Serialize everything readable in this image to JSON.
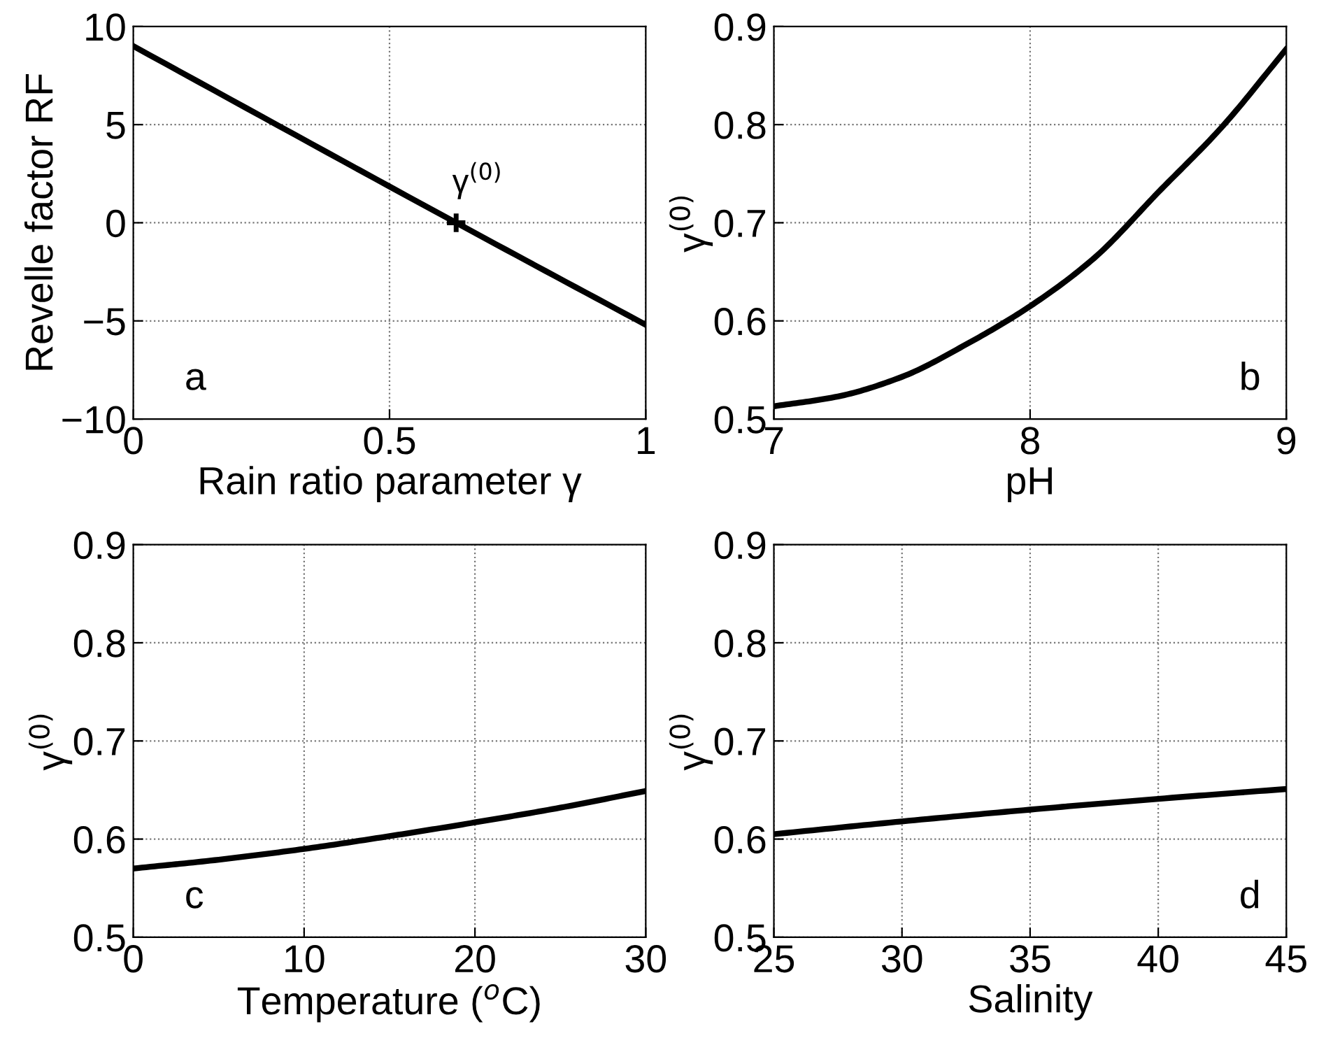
{
  "chart_data": [
    {
      "type": "line",
      "xlabel": "Rain ratio parameter γ",
      "ylabel": "Revelle factor RF",
      "xlim": [
        0,
        1
      ],
      "ylim": [
        -10,
        10
      ],
      "xticks": [
        0,
        0.5,
        1
      ],
      "yticks": [
        -10,
        -5,
        0,
        5,
        10
      ],
      "grid": true,
      "series": [
        {
          "color": "#000000",
          "x": [
            0,
            0.63,
            1
          ],
          "values": [
            9,
            0,
            -5.2
          ]
        },
        {
          "type": "scatter",
          "marker": "cross",
          "color": "#000000",
          "x": [
            0.63
          ],
          "values": [
            0
          ]
        }
      ],
      "annotations": [
        {
          "text": "γ$^{(0)}$",
          "x": 0.63,
          "y": 0
        },
        "a"
      ]
    },
    {
      "type": "line",
      "xlabel": "pH",
      "ylabel": "γ$^{(0)}$",
      "xlim": [
        7,
        9
      ],
      "ylim": [
        0.5,
        0.9
      ],
      "xticks": [
        7,
        8,
        9
      ],
      "yticks": [
        0.5,
        0.6,
        0.7,
        0.8,
        0.9
      ],
      "grid": true,
      "series": [
        {
          "color": "#000000",
          "x": [
            7,
            7.25,
            7.5,
            7.75,
            8,
            8.25,
            8.5,
            8.75,
            9
          ],
          "values": [
            0.513,
            0.523,
            0.543,
            0.576,
            0.615,
            0.664,
            0.731,
            0.798,
            0.877
          ]
        }
      ],
      "annotations": [
        "b"
      ]
    },
    {
      "type": "line",
      "xlabel": "Temperature ($^{o}$C)",
      "ylabel": "γ$^{(0)}$",
      "xlim": [
        0,
        30
      ],
      "ylim": [
        0.5,
        0.9
      ],
      "xticks": [
        0,
        10,
        20,
        30
      ],
      "yticks": [
        0.5,
        0.6,
        0.7,
        0.8,
        0.9
      ],
      "grid": true,
      "series": [
        {
          "color": "#000000",
          "x": [
            0,
            5,
            10,
            15,
            20,
            25,
            30
          ],
          "values": [
            0.57,
            0.579,
            0.59,
            0.603,
            0.617,
            0.632,
            0.649
          ]
        }
      ],
      "annotations": [
        "c"
      ]
    },
    {
      "type": "line",
      "xlabel": "Salinity",
      "ylabel": "γ$^{(0)}$",
      "xlim": [
        25,
        45
      ],
      "ylim": [
        0.5,
        0.9
      ],
      "xticks": [
        25,
        30,
        35,
        40,
        45
      ],
      "yticks": [
        0.5,
        0.6,
        0.7,
        0.8,
        0.9
      ],
      "grid": true,
      "series": [
        {
          "color": "#000000",
          "x": [
            25,
            30,
            35,
            40,
            45
          ],
          "values": [
            0.605,
            0.618,
            0.63,
            0.641,
            0.651
          ]
        }
      ],
      "annotations": [
        "d"
      ]
    }
  ]
}
